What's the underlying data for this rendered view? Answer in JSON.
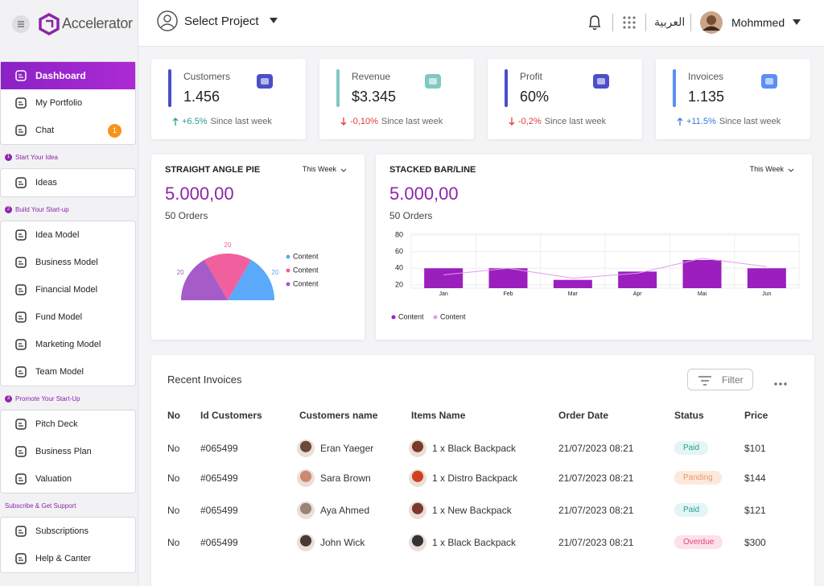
{
  "sidebar": {
    "brand": "Accelerator",
    "menu": [
      {
        "label": "Dashboard",
        "active": true
      },
      {
        "label": "My Portfolio"
      },
      {
        "label": "Chat",
        "badge": 1
      }
    ],
    "sections": [
      {
        "number": 1,
        "title": "Start Your Idea",
        "items": [
          "Ideas"
        ]
      },
      {
        "number": 2,
        "title": "Build Your Start-up",
        "items": [
          "Idea Model",
          "Business Model",
          "Financial Model",
          "Fund Model",
          "Marketing Model",
          "Team Model"
        ]
      },
      {
        "number": 3,
        "title": "Promote Your Start-Up",
        "items": [
          "Pitch Deck",
          "Business Plan",
          "Valuation"
        ]
      },
      {
        "title": "Subscribe & Get Support",
        "items": [
          "Subscriptions",
          "Help & Canter"
        ]
      }
    ]
  },
  "header": {
    "project": "Select Project",
    "language": "العربية",
    "user": "Mohmmed"
  },
  "stats": [
    {
      "label": "Customers",
      "value": "1.456",
      "change": "+6.5%",
      "note": "Since last week",
      "accent": "#4b4fc8",
      "change_color": "#2a9d8f"
    },
    {
      "label": "Revenue",
      "value": "$3.345",
      "change": "-0,10%",
      "note": "Since last week",
      "accent": "#7fc9c1",
      "change_color": "#e53935"
    },
    {
      "label": "Profit",
      "value": "60%",
      "change": "-0,2%",
      "note": "Since last week",
      "accent": "#4b4fc8",
      "change_color": "#e53935"
    },
    {
      "label": "Invoices",
      "value": "1.135",
      "change": "+11.5%",
      "note": "Since last week",
      "accent": "#5b8ef5",
      "change_color": "#3a7bd5"
    }
  ],
  "chart_data": [
    {
      "type": "pie",
      "title": "STRAIGHT ANGLE PIE",
      "period": "This Week",
      "total": "5.000,00",
      "subtitle": "50 Orders",
      "categories": [
        "Content",
        "Content",
        "Content"
      ],
      "values": [
        20,
        20,
        20
      ],
      "colors": [
        "#5aa9fa",
        "#f0609e",
        "#a55cc9"
      ]
    },
    {
      "type": "bar-line",
      "title": "STACKED BAR/LINE",
      "period": "This Week",
      "total": "5.000,00",
      "subtitle": "50 Orders",
      "categories": [
        "Jan",
        "Feb",
        "Mar",
        "Apr",
        "Mai",
        "Jun"
      ],
      "series": [
        {
          "name": "Content",
          "color": "#9a1fbd",
          "kind": "bar",
          "values": [
            40,
            40,
            26,
            36,
            50,
            40
          ]
        },
        {
          "name": "Content",
          "color": "#e39af0",
          "kind": "line",
          "values": [
            32,
            40,
            28,
            34,
            52,
            42
          ]
        }
      ],
      "ylim": [
        16,
        82
      ],
      "yticks": [
        20,
        40,
        60,
        80
      ],
      "grid": true
    }
  ],
  "invoices": {
    "title": "Recent Invoices",
    "filter": "Filter",
    "columns": [
      "No",
      "Id Customers",
      "Customers name",
      "Items Name",
      "Order Date",
      "Status",
      "Price"
    ],
    "rows": [
      {
        "no": "No",
        "id": "#065499",
        "name": "Eran Yaeger",
        "item": "1 x Black Backpack",
        "date": "21/07/2023 08:21",
        "status": "Paid",
        "price": "$101"
      },
      {
        "no": "No",
        "id": "#065499",
        "name": "Sara Brown",
        "item": "1 x Distro Backpack",
        "date": "21/07/2023 08:21",
        "status": "Panding",
        "price": "$144"
      },
      {
        "no": "No",
        "id": "#065499",
        "name": "Aya Ahmed",
        "item": "1 x New Backpack",
        "date": "21/07/2023 08:21",
        "status": "Paid",
        "price": "$121"
      },
      {
        "no": "No",
        "id": "#065499",
        "name": "John Wick",
        "item": "1 x Black Backpack",
        "date": "21/07/2023 08:21",
        "status": "Overdue",
        "price": "$300"
      }
    ]
  }
}
